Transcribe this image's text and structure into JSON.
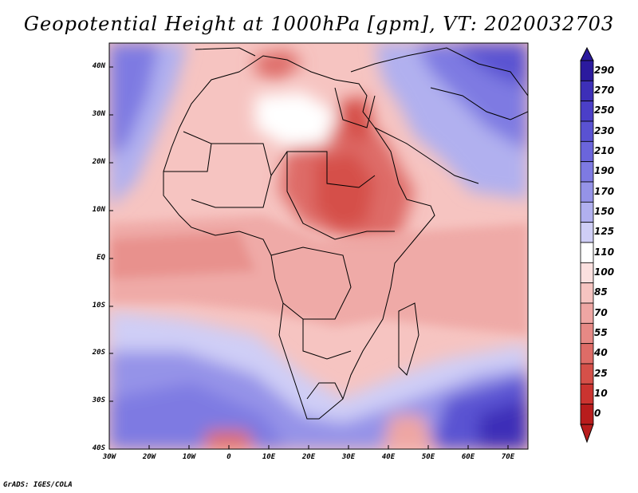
{
  "title": "Geopotential Height at 1000hPa [gpm], VT: 2020032703",
  "footer": "GrADS: IGES/COLA",
  "lat_ticks": [
    "40N",
    "30N",
    "20N",
    "10N",
    "EQ",
    "10S",
    "20S",
    "30S",
    "40S"
  ],
  "lon_ticks": [
    "30W",
    "20W",
    "10W",
    "0",
    "10E",
    "20E",
    "30E",
    "40E",
    "50E",
    "60E",
    "70E"
  ],
  "colorbar": {
    "labels": [
      "290",
      "270",
      "250",
      "230",
      "210",
      "190",
      "170",
      "150",
      "125",
      "110",
      "100",
      "85",
      "70",
      "55",
      "40",
      "25",
      "10",
      "0"
    ],
    "colors": [
      "#2b1a9e",
      "#3d2fb8",
      "#4b3fc8",
      "#5a52d2",
      "#6b65db",
      "#7e7ae2",
      "#9593e8",
      "#b1b0ef",
      "#cfcef6",
      "#ffffff",
      "#fbe0df",
      "#f6c4c1",
      "#eea6a3",
      "#e68985",
      "#de6c67",
      "#d55049",
      "#cb3430",
      "#b81c1c"
    ]
  }
}
